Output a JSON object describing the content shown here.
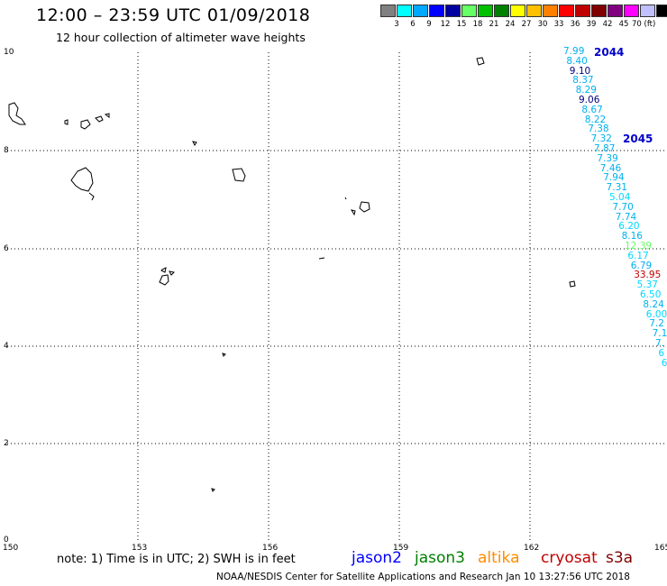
{
  "header": {
    "title": "12:00 – 23:59 UTC 01/09/2018",
    "subtitle": "12 hour collection of altimeter wave heights"
  },
  "legend": {
    "colors": [
      "#808080",
      "#00ffff",
      "#00a8ff",
      "#0000ff",
      "#0000a0",
      "#66ff66",
      "#00c000",
      "#008000",
      "#ffff00",
      "#ffc000",
      "#ff8000",
      "#ff0000",
      "#c00000",
      "#800000",
      "#800080",
      "#ff00ff",
      "#c0c0ff",
      "#000000"
    ],
    "labels": [
      "3",
      "6",
      "9",
      "12",
      "15",
      "18",
      "21",
      "24",
      "27",
      "30",
      "33",
      "36",
      "39",
      "42",
      "45",
      "70 (ft)"
    ]
  },
  "axes": {
    "y_ticks": [
      "10",
      "8",
      "6",
      "4",
      "2",
      "0"
    ],
    "x_ticks": [
      "150",
      "153",
      "156",
      "159",
      "162",
      "165"
    ]
  },
  "tracks": [
    {
      "id": "2044",
      "color": "#0000cc"
    },
    {
      "id": "2045",
      "color": "#0000cc"
    }
  ],
  "wave_heights": [
    {
      "value": "7.99",
      "color": "#00b0f0"
    },
    {
      "value": "8.40",
      "color": "#00b0f0"
    },
    {
      "value": "9.10",
      "color": "#000080"
    },
    {
      "value": "8.37",
      "color": "#00b0f0"
    },
    {
      "value": "8.29",
      "color": "#00b0f0"
    },
    {
      "value": "9.06",
      "color": "#000080"
    },
    {
      "value": "8.67",
      "color": "#00b0f0"
    },
    {
      "value": "8.22",
      "color": "#00b0f0"
    },
    {
      "value": "7.38",
      "color": "#00b0f0"
    },
    {
      "value": "7.32",
      "color": "#00b0f0"
    },
    {
      "value": "7.87",
      "color": "#00b0f0"
    },
    {
      "value": "7.39",
      "color": "#00b0f0"
    },
    {
      "value": "7.46",
      "color": "#00b0f0"
    },
    {
      "value": "7.94",
      "color": "#00b0f0"
    },
    {
      "value": "7.31",
      "color": "#00b0f0"
    },
    {
      "value": "5.04",
      "color": "#00d8ff"
    },
    {
      "value": "7.70",
      "color": "#00b0f0"
    },
    {
      "value": "7.74",
      "color": "#00b0f0"
    },
    {
      "value": "6.20",
      "color": "#00d8ff"
    },
    {
      "value": "8.16",
      "color": "#00b0f0"
    },
    {
      "value": "12.39",
      "color": "#66ff66"
    },
    {
      "value": "6.17",
      "color": "#00d8ff"
    },
    {
      "value": "6.79",
      "color": "#00b0f0"
    },
    {
      "value": "33.95",
      "color": "#c00000"
    },
    {
      "value": "5.37",
      "color": "#00d8ff"
    },
    {
      "value": "6.50",
      "color": "#00d8ff"
    },
    {
      "value": "8.24",
      "color": "#00b0f0"
    },
    {
      "value": "6.00",
      "color": "#00d8ff"
    },
    {
      "value": "7.2",
      "color": "#00b0f0"
    },
    {
      "value": "7.1",
      "color": "#00b0f0"
    },
    {
      "value": "7.",
      "color": "#00b0f0"
    },
    {
      "value": "6",
      "color": "#00d8ff"
    },
    {
      "value": "6",
      "color": "#00d8ff"
    }
  ],
  "footer": {
    "note": "note:  1) Time is in UTC;  2) SWH is in feet",
    "satellites": [
      {
        "name": "jason2",
        "color": "#0000ff"
      },
      {
        "name": "jason3",
        "color": "#008000"
      },
      {
        "name": "altika",
        "color": "#ff8c00"
      },
      {
        "name": "cryosat",
        "color": "#c00000"
      },
      {
        "name": "s3a",
        "color": "#800000"
      }
    ],
    "credits": "NOAA/NESDIS Center for Satellite Applications and Research     Jan 10 13:27:56 UTC 2018"
  }
}
